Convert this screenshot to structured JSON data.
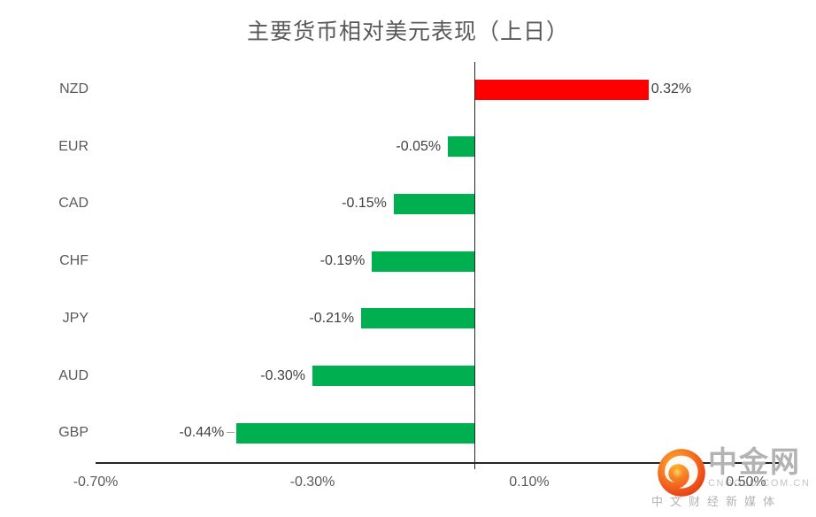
{
  "title": "主要货币相对美元表现（上日）",
  "chart_data": {
    "type": "bar",
    "orientation": "horizontal",
    "title": "主要货币相对美元表现（上日）",
    "xlabel": "",
    "ylabel": "",
    "categories": [
      "NZD",
      "EUR",
      "CAD",
      "CHF",
      "JPY",
      "AUD",
      "GBP"
    ],
    "values": [
      0.32,
      -0.05,
      -0.15,
      -0.19,
      -0.21,
      -0.3,
      -0.44
    ],
    "value_labels": [
      "0.32%",
      "-0.05%",
      "-0.15%",
      "-0.19%",
      "-0.21%",
      "-0.30%",
      "-0.44%"
    ],
    "leader_lines": [
      false,
      false,
      false,
      false,
      false,
      false,
      true
    ],
    "xlim": [
      -0.7,
      0.567
    ],
    "x_ticks": [
      {
        "value": -0.7,
        "label": "-0.70%"
      },
      {
        "value": -0.3,
        "label": "-0.30%"
      },
      {
        "value": 0.1,
        "label": "0.10%"
      },
      {
        "value": 0.5,
        "label": "0.50%"
      }
    ],
    "grid": false,
    "legend": false,
    "colors": {
      "positive": "#ff0000",
      "negative": "#00b050",
      "axis": "#262626",
      "title_text": "#595959",
      "category_text": "#595959",
      "value_text": "#404040",
      "tick_text": "#595959"
    }
  },
  "watermark": {
    "brand": "中金网",
    "domain": "CNGOLD.COM.CN",
    "tagline": "中文财经新媒体"
  }
}
